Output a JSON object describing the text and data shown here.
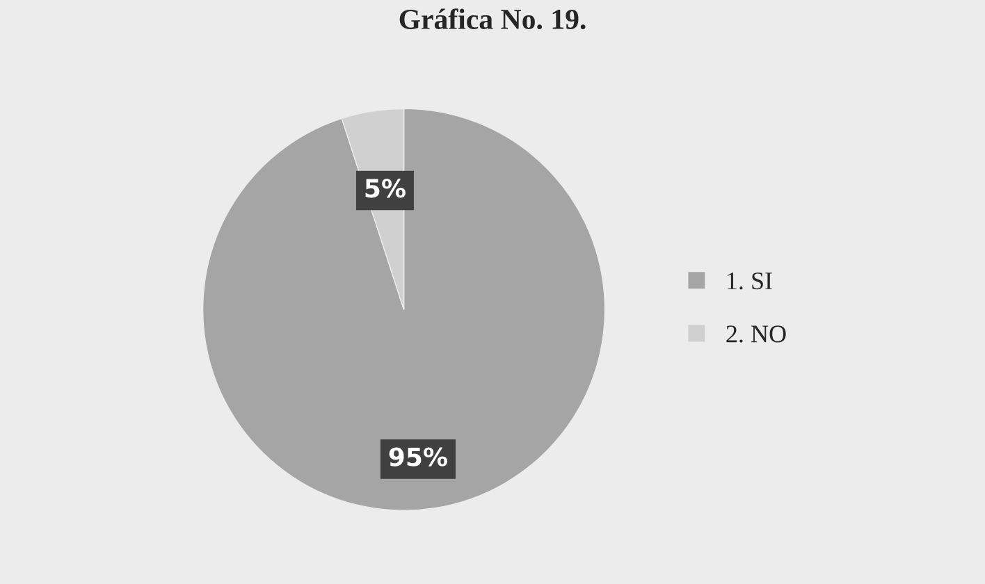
{
  "chart_data": {
    "type": "pie",
    "title": "Gráfica No. 19.",
    "categories": [
      "1. SI",
      "2. NO"
    ],
    "values": [
      95,
      5
    ],
    "colors": [
      "#a5a5a5",
      "#d0d0d0"
    ],
    "value_labels": [
      "95%",
      "5%"
    ],
    "legend": "right"
  }
}
